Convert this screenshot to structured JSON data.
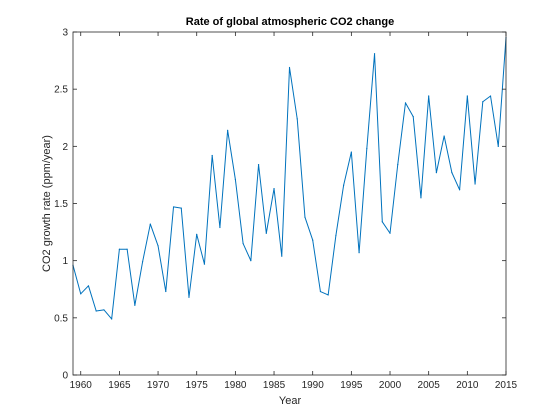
{
  "chart_data": {
    "type": "line",
    "title": "Rate of global atmospheric CO2 change",
    "xlabel": "Year",
    "ylabel": "CO2 growth rate (ppm/year)",
    "xlim": [
      1959,
      2015
    ],
    "ylim": [
      0,
      3
    ],
    "xticks": [
      1960,
      1965,
      1970,
      1975,
      1980,
      1985,
      1990,
      1995,
      2000,
      2005,
      2010,
      2015
    ],
    "yticks": [
      0,
      0.5,
      1,
      1.5,
      2,
      2.5,
      3
    ],
    "grid": false,
    "line_color": "#0072BD",
    "series": [
      {
        "x": [
          1959,
          1960,
          1961,
          1962,
          1963,
          1964,
          1965,
          1966,
          1967,
          1968,
          1969,
          1970,
          1971,
          1972,
          1973,
          1974,
          1975,
          1976,
          1977,
          1978,
          1979,
          1980,
          1981,
          1982,
          1983,
          1984,
          1985,
          1986,
          1987,
          1988,
          1989,
          1990,
          1991,
          1992,
          1993,
          1994,
          1995,
          1996,
          1997,
          1998,
          1999,
          2000,
          2001,
          2002,
          2003,
          2004,
          2005,
          2006,
          2007,
          2008,
          2009,
          2010,
          2011,
          2012,
          2013,
          2014,
          2015
        ],
        "values": [
          0.96,
          0.71,
          0.78,
          0.56,
          0.57,
          0.49,
          1.1,
          1.1,
          0.61,
          0.99,
          1.32,
          1.13,
          0.73,
          1.47,
          1.46,
          0.68,
          1.23,
          0.97,
          1.92,
          1.29,
          2.14,
          1.71,
          1.15,
          1.0,
          1.84,
          1.24,
          1.63,
          1.04,
          2.69,
          2.24,
          1.38,
          1.18,
          0.73,
          0.7,
          1.22,
          1.66,
          1.95,
          1.07,
          1.98,
          2.81,
          1.34,
          1.24,
          1.84,
          2.38,
          2.26,
          1.55,
          2.44,
          1.77,
          2.09,
          1.77,
          1.62,
          2.44,
          1.67,
          2.39,
          2.44,
          2.0,
          2.95
        ]
      }
    ]
  }
}
